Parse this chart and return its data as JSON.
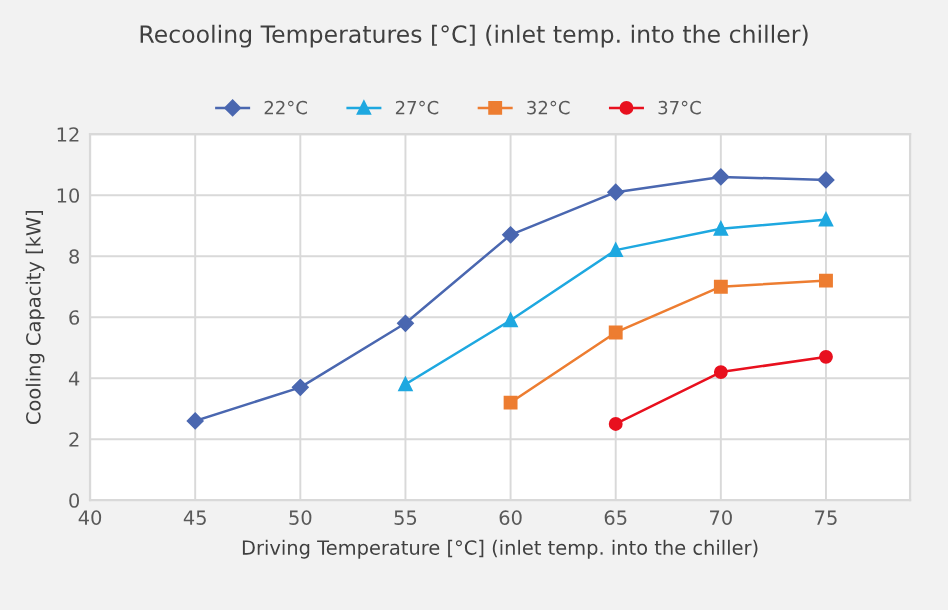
{
  "chart_data": {
    "type": "line",
    "title": "Recooling Temperatures [°C] (inlet temp. into the chiller)",
    "xlabel": "Driving Temperature [°C] (inlet temp. into the chiller)",
    "ylabel": "Cooling Capacity [kW]",
    "series": [
      {
        "name": "22°C",
        "color": "#4a67b0",
        "marker": "diamond",
        "x": [
          45,
          50,
          55,
          60,
          65,
          70,
          75
        ],
        "values": [
          2.6,
          3.7,
          5.8,
          8.7,
          10.1,
          10.6,
          10.5
        ]
      },
      {
        "name": "27°C",
        "color": "#1ea8e0",
        "marker": "triangle",
        "x": [
          55,
          60,
          65,
          70,
          75
        ],
        "values": [
          3.8,
          5.9,
          8.2,
          8.9,
          9.2
        ]
      },
      {
        "name": "32°C",
        "color": "#ed7d31",
        "marker": "square",
        "x": [
          60,
          65,
          70,
          75
        ],
        "values": [
          3.2,
          5.5,
          7.0,
          7.2
        ]
      },
      {
        "name": "37°C",
        "color": "#e8101e",
        "marker": "circle",
        "x": [
          65,
          70,
          75
        ],
        "values": [
          2.5,
          4.2,
          4.7
        ]
      }
    ],
    "xlim": [
      40,
      79
    ],
    "xticks": [
      40,
      45,
      50,
      55,
      60,
      65,
      70,
      75
    ],
    "ylim": [
      0,
      12
    ],
    "yticks": [
      0,
      2,
      4,
      6,
      8,
      10,
      12
    ],
    "grid": true,
    "legend": "top"
  }
}
